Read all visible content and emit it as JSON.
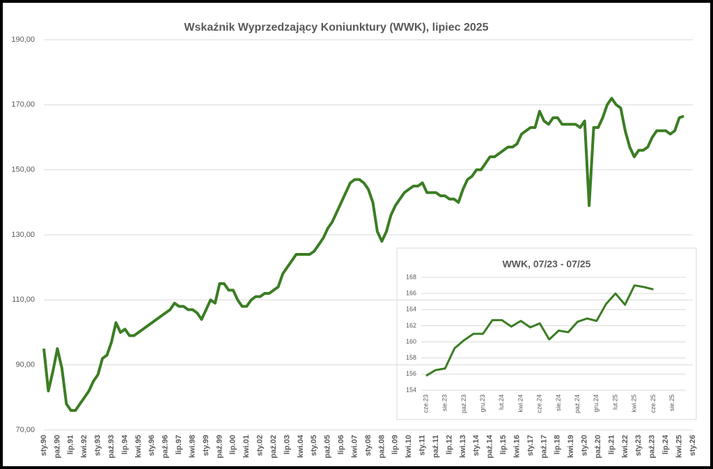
{
  "chart_data": [
    {
      "type": "line",
      "title": "Wskaźnik Wyprzedzający Koniunktury (WWK), lipiec 2025",
      "categories": [
        "sty.90",
        null,
        null,
        "paź.90",
        null,
        null,
        "lip.91",
        null,
        null,
        "kwi.92",
        null,
        null,
        "sty.93",
        null,
        null,
        "paź.93",
        null,
        null,
        "lip.94",
        null,
        null,
        "kwi.95",
        null,
        null,
        "sty.96",
        null,
        null,
        "paź.96",
        null,
        null,
        "lip.97",
        null,
        null,
        "kwi.98",
        null,
        null,
        "sty.99",
        null,
        null,
        "paź.99",
        null,
        null,
        "lip.00",
        null,
        null,
        "kwi.01",
        null,
        null,
        "sty.02",
        null,
        null,
        "paź.02",
        null,
        null,
        "lip.03",
        null,
        null,
        "kwi.04",
        null,
        null,
        "sty.05",
        null,
        null,
        "paź.05",
        null,
        null,
        "lip.06",
        null,
        null,
        "kwi.07",
        null,
        null,
        "sty.08",
        null,
        null,
        "paź.08",
        null,
        null,
        "lip.09",
        null,
        null,
        "kwi.10",
        null,
        null,
        "sty.11",
        null,
        null,
        "paź.11",
        null,
        null,
        "lip.12",
        null,
        null,
        "kwi.13",
        null,
        null,
        "sty.14",
        null,
        null,
        "paź.14",
        null,
        null,
        "lip.15",
        null,
        null,
        "kwi.16",
        null,
        null,
        "sty.17",
        null,
        null,
        "paź.17",
        null,
        null,
        "lip.18",
        null,
        null,
        "kwi.19",
        null,
        null,
        "sty.20",
        null,
        null,
        "paź.20",
        null,
        null,
        "lip.21",
        null,
        null,
        "kwi.22",
        null,
        null,
        "sty.23",
        null,
        null,
        "paź.23",
        null,
        null,
        "lip.24",
        null,
        null,
        "kwi.25",
        null,
        null,
        "sty.26"
      ],
      "series": [
        {
          "color": "#3b7d23",
          "values": [
            95,
            82,
            88,
            95,
            89,
            78,
            76,
            76,
            78,
            80,
            82,
            85,
            87,
            92,
            93,
            97,
            103,
            100,
            101,
            99,
            99,
            100,
            101,
            102,
            103,
            104,
            105,
            106,
            107,
            109,
            108,
            108,
            107,
            107,
            106,
            104,
            107,
            110,
            109,
            115,
            115,
            113,
            113,
            110,
            108,
            108,
            110,
            111,
            111,
            112,
            112,
            113,
            114,
            118,
            120,
            122,
            124,
            124,
            124,
            124,
            125,
            127,
            129,
            132,
            134,
            137,
            140,
            143,
            146,
            147,
            147,
            146,
            144,
            140,
            131,
            128,
            131,
            136,
            139,
            141,
            143,
            144,
            145,
            145,
            146,
            143,
            143,
            143,
            142,
            142,
            141,
            141,
            140,
            144,
            147,
            148,
            150,
            150,
            152,
            154,
            154,
            155,
            156,
            157,
            157,
            158,
            161,
            162,
            163,
            163,
            168,
            165,
            164,
            166,
            166,
            164,
            164,
            164,
            164,
            163,
            165,
            139,
            163,
            163,
            166,
            170,
            172,
            170,
            169,
            162,
            157,
            154,
            156,
            156,
            157,
            160,
            162,
            162,
            162,
            161,
            162,
            166,
            166.5,
            null,
            null
          ]
        }
      ],
      "ylim": [
        70,
        190
      ],
      "yticks": [
        {
          "value": 70,
          "label": "70,00"
        },
        {
          "value": 90,
          "label": "90,00"
        },
        {
          "value": 110,
          "label": "110,00"
        },
        {
          "value": 130,
          "label": "130,00"
        },
        {
          "value": 150,
          "label": "150,00"
        },
        {
          "value": 170,
          "label": "170,00"
        },
        {
          "value": 190,
          "label": "190,00"
        }
      ],
      "grid": true
    },
    {
      "type": "line",
      "title": "WWK, 07/23 - 07/25",
      "categories": [
        "cze.23",
        null,
        "sie.23",
        null,
        "paź.23",
        null,
        "gru.23",
        null,
        "lut.24",
        null,
        "kwi.24",
        null,
        "cze.24",
        null,
        "sie.24",
        null,
        "paź.24",
        null,
        "gru.24",
        null,
        "lut.25",
        null,
        "kwi.25",
        null,
        "cze.25",
        null,
        "sie.25"
      ],
      "series": [
        {
          "color": "#3b7d23",
          "values": [
            155.8,
            156.5,
            156.7,
            159.2,
            160.2,
            161,
            161,
            162.7,
            162.7,
            161.9,
            162.6,
            161.8,
            162.3,
            160.3,
            161.4,
            161.2,
            162.5,
            162.9,
            162.6,
            164.7,
            166,
            164.6,
            167,
            166.8,
            166.5,
            null,
            null
          ]
        }
      ],
      "ylim": [
        154,
        168
      ],
      "yticks": [
        154,
        156,
        158,
        160,
        162,
        164,
        166,
        168
      ],
      "grid": true
    }
  ]
}
